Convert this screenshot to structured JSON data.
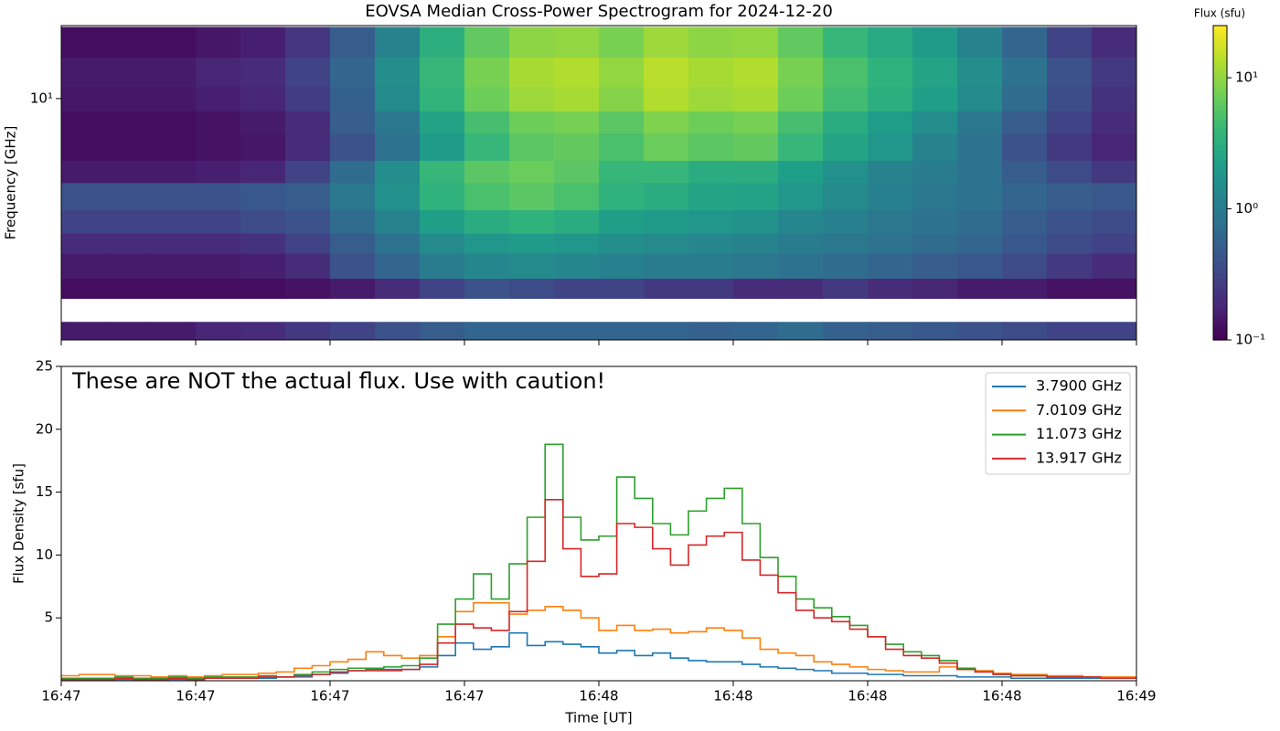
{
  "chart_data": [
    {
      "type": "heatmap",
      "title": "EOVSA Median Cross-Power Spectrogram for 2024-12-20",
      "y_label": "Frequency [GHz]",
      "y_log": true,
      "x_bins": [
        0,
        5,
        10,
        15,
        20,
        25,
        30,
        35,
        40,
        45,
        50,
        55,
        60,
        65,
        70,
        75,
        80,
        85,
        90,
        95,
        100,
        105,
        110,
        115,
        120
      ],
      "y_bins": [
        18,
        14,
        11,
        9,
        7.5,
        6,
        5,
        4,
        3.3,
        2.8,
        2.28,
        1.94,
        1.6,
        1.38
      ],
      "ylim": [
        1.38,
        18.2
      ],
      "yticks": [
        {
          "value": 10,
          "label": "10¹"
        }
      ],
      "colorbar_label": "Flux (sfu)",
      "color_log": true,
      "colormap": "viridis",
      "clim": [
        0.1,
        25
      ],
      "colorbar_ticks": [
        {
          "value": 0.1,
          "label": "10⁻¹"
        },
        {
          "value": 1,
          "label": "10⁰"
        },
        {
          "value": 10,
          "label": "10¹"
        }
      ],
      "values": [
        [
          0.12,
          0.12,
          0.12,
          0.14,
          0.16,
          0.24,
          0.5,
          1.2,
          3.2,
          6.4,
          9.6,
          10,
          8,
          11,
          9.6,
          10,
          6.4,
          4,
          2.8,
          2,
          1.2,
          0.6,
          0.3,
          0.2
        ],
        [
          0.15,
          0.15,
          0.15,
          0.18,
          0.2,
          0.3,
          0.6,
          1.5,
          4,
          8,
          12,
          13,
          10,
          14,
          12,
          13,
          8,
          5,
          3.5,
          2.5,
          1.5,
          0.8,
          0.4,
          0.25
        ],
        [
          0.14,
          0.14,
          0.14,
          0.16,
          0.18,
          0.27,
          0.54,
          1.4,
          3.6,
          7.2,
          11,
          12,
          9,
          13,
          11,
          12,
          7.2,
          4.5,
          3.2,
          2.2,
          1.4,
          0.7,
          0.36,
          0.22
        ],
        [
          0.12,
          0.12,
          0.12,
          0.13,
          0.15,
          0.2,
          0.5,
          0.9,
          2.4,
          4.8,
          7.2,
          7.8,
          6,
          8.4,
          7.2,
          7.8,
          4.8,
          3,
          2.1,
          1.5,
          0.9,
          0.5,
          0.3,
          0.2
        ],
        [
          0.12,
          0.12,
          0.12,
          0.13,
          0.14,
          0.2,
          0.4,
          0.8,
          2,
          4,
          6,
          6.5,
          5,
          7,
          6,
          6.5,
          4,
          2.5,
          1.8,
          1.2,
          0.8,
          0.4,
          0.25,
          0.18
        ],
        [
          0.15,
          0.15,
          0.15,
          0.16,
          0.18,
          0.3,
          0.7,
          1.5,
          4,
          6,
          7,
          6,
          4,
          4,
          3,
          3,
          2.2,
          1.6,
          1.2,
          1,
          0.8,
          0.5,
          0.35,
          0.25
        ],
        [
          0.4,
          0.4,
          0.4,
          0.4,
          0.45,
          0.5,
          0.9,
          1.6,
          3.5,
          5,
          6,
          5,
          3.5,
          3,
          2.5,
          2.4,
          1.8,
          1.4,
          1.1,
          0.9,
          0.8,
          0.6,
          0.5,
          0.45
        ],
        [
          0.3,
          0.3,
          0.3,
          0.3,
          0.35,
          0.4,
          0.7,
          1.2,
          2.2,
          3,
          3.5,
          3,
          2.2,
          2,
          1.8,
          1.7,
          1.3,
          1.1,
          0.9,
          0.8,
          0.7,
          0.5,
          0.4,
          0.35
        ],
        [
          0.2,
          0.2,
          0.2,
          0.2,
          0.22,
          0.3,
          0.5,
          0.8,
          1.4,
          1.8,
          2,
          1.8,
          1.5,
          1.4,
          1.3,
          1.2,
          1,
          0.9,
          0.8,
          0.7,
          0.6,
          0.45,
          0.35,
          0.3
        ],
        [
          0.15,
          0.15,
          0.15,
          0.15,
          0.16,
          0.2,
          0.4,
          0.6,
          1,
          1.3,
          1.4,
          1.3,
          1.1,
          1,
          1,
          0.9,
          0.8,
          0.7,
          0.6,
          0.5,
          0.45,
          0.35,
          0.25,
          0.2
        ],
        [
          0.12,
          0.12,
          0.12,
          0.12,
          0.12,
          0.13,
          0.15,
          0.2,
          0.3,
          0.4,
          0.35,
          0.3,
          0.3,
          0.25,
          0.25,
          0.2,
          0.2,
          0.25,
          0.2,
          0.18,
          0.15,
          0.15,
          0.13,
          0.13
        ],
        [
          null,
          null,
          null,
          null,
          null,
          null,
          null,
          null,
          null,
          null,
          null,
          null,
          null,
          null,
          null,
          null,
          null,
          null,
          null,
          null,
          null,
          null,
          null,
          null
        ],
        [
          0.15,
          0.15,
          0.15,
          0.18,
          0.2,
          0.25,
          0.3,
          0.4,
          0.5,
          0.6,
          0.6,
          0.6,
          0.6,
          0.6,
          0.55,
          0.6,
          0.7,
          0.55,
          0.5,
          0.45,
          0.4,
          0.35,
          0.3,
          0.3
        ]
      ]
    },
    {
      "type": "step",
      "annotation": "These are NOT the actual flux. Use with caution!",
      "x_label": "Time [UT]",
      "y_label": "Flux Density [sfu]",
      "legend": "upper right",
      "x": [
        0,
        2,
        4,
        6,
        8,
        10,
        12,
        14,
        16,
        18,
        20,
        22,
        24,
        26,
        28,
        30,
        32,
        34,
        36,
        38,
        40,
        42,
        44,
        46,
        48,
        50,
        52,
        54,
        56,
        58,
        60,
        62,
        64,
        66,
        68,
        70,
        72,
        74,
        76,
        78,
        80,
        82,
        84,
        86,
        88,
        90,
        92,
        94,
        96,
        98,
        100,
        102,
        104,
        106,
        108,
        110,
        112,
        114,
        116,
        118
      ],
      "xlim": [
        0,
        120
      ],
      "xticks": [
        {
          "value": 0,
          "label": "16:47"
        },
        {
          "value": 15,
          "label": "16:47"
        },
        {
          "value": 30,
          "label": "16:47"
        },
        {
          "value": 45,
          "label": "16:47"
        },
        {
          "value": 60,
          "label": "16:48"
        },
        {
          "value": 75,
          "label": "16:48"
        },
        {
          "value": 90,
          "label": "16:48"
        },
        {
          "value": 105,
          "label": "16:48"
        },
        {
          "value": 120,
          "label": "16:49"
        }
      ],
      "ylim": [
        0,
        25
      ],
      "yticks": [
        5,
        10,
        15,
        20,
        25
      ],
      "series": [
        {
          "name": "3.7900 GHz",
          "color": "#1f77b4",
          "values": [
            0.1,
            0.1,
            0.1,
            0.1,
            0.1,
            0.1,
            0.1,
            0.1,
            0.2,
            0.2,
            0.2,
            0.2,
            0.3,
            0.3,
            0.5,
            0.6,
            0.8,
            0.9,
            0.9,
            0.9,
            1.1,
            2.0,
            3.0,
            2.5,
            2.7,
            3.8,
            2.8,
            3.1,
            2.9,
            2.7,
            2.2,
            2.4,
            2.0,
            2.2,
            1.8,
            1.6,
            1.5,
            1.5,
            1.3,
            1.1,
            1.0,
            0.9,
            0.8,
            0.6,
            0.6,
            0.5,
            0.5,
            0.4,
            0.4,
            0.4,
            0.3,
            0.3,
            0.3,
            0.2,
            0.2,
            0.2,
            0.2,
            0.2,
            0.2,
            0.2
          ]
        },
        {
          "name": "7.0109 GHz",
          "color": "#ff7f0e",
          "values": [
            0.4,
            0.5,
            0.5,
            0.4,
            0.4,
            0.3,
            0.4,
            0.3,
            0.4,
            0.5,
            0.5,
            0.6,
            0.7,
            1.0,
            1.2,
            1.5,
            1.7,
            2.3,
            2.0,
            1.8,
            2.0,
            3.5,
            5.5,
            6.2,
            6.2,
            5.3,
            5.6,
            5.9,
            5.6,
            5.0,
            4.0,
            4.4,
            4.0,
            4.1,
            3.8,
            3.9,
            4.2,
            4.0,
            3.4,
            2.5,
            2.2,
            2.0,
            1.5,
            1.3,
            1.1,
            0.9,
            0.8,
            0.7,
            0.7,
            1.1,
            0.9,
            0.8,
            0.6,
            0.5,
            0.5,
            0.4,
            0.4,
            0.3,
            0.3,
            0.3
          ]
        },
        {
          "name": "11.073 GHz",
          "color": "#2ca02c",
          "values": [
            0.2,
            0.2,
            0.2,
            0.3,
            0.2,
            0.2,
            0.3,
            0.2,
            0.3,
            0.3,
            0.3,
            0.4,
            0.3,
            0.5,
            0.7,
            0.9,
            1.0,
            1.0,
            1.1,
            1.2,
            1.8,
            4.5,
            6.5,
            8.5,
            6.5,
            9.3,
            13,
            18.8,
            13,
            11.2,
            11.5,
            16.2,
            14.5,
            12.5,
            11.6,
            13.5,
            14.5,
            15.3,
            12.5,
            9.8,
            8.3,
            6.5,
            5.8,
            5.1,
            4.4,
            3.5,
            2.9,
            2.3,
            2.0,
            1.6,
            1.0,
            0.7,
            0.5,
            0.4,
            0.4,
            0.3,
            0.3,
            0.3,
            0.2,
            0.2
          ]
        },
        {
          "name": "13.917 GHz",
          "color": "#d62728",
          "values": [
            0.1,
            0.1,
            0.1,
            0.2,
            0.1,
            0.1,
            0.2,
            0.1,
            0.2,
            0.2,
            0.2,
            0.3,
            0.3,
            0.4,
            0.5,
            0.7,
            0.8,
            0.8,
            0.8,
            0.9,
            1.3,
            3.0,
            4.5,
            4.2,
            4.0,
            5.5,
            9.5,
            14.4,
            10.5,
            8.3,
            8.5,
            12.5,
            12.2,
            10.5,
            9.2,
            10.8,
            11.5,
            11.8,
            9.6,
            8.4,
            7.0,
            5.6,
            5.0,
            4.7,
            4.1,
            3.5,
            2.5,
            2.0,
            1.8,
            1.4,
            0.9,
            0.7,
            0.5,
            0.4,
            0.4,
            0.3,
            0.3,
            0.3,
            0.2,
            0.2
          ]
        }
      ]
    }
  ]
}
